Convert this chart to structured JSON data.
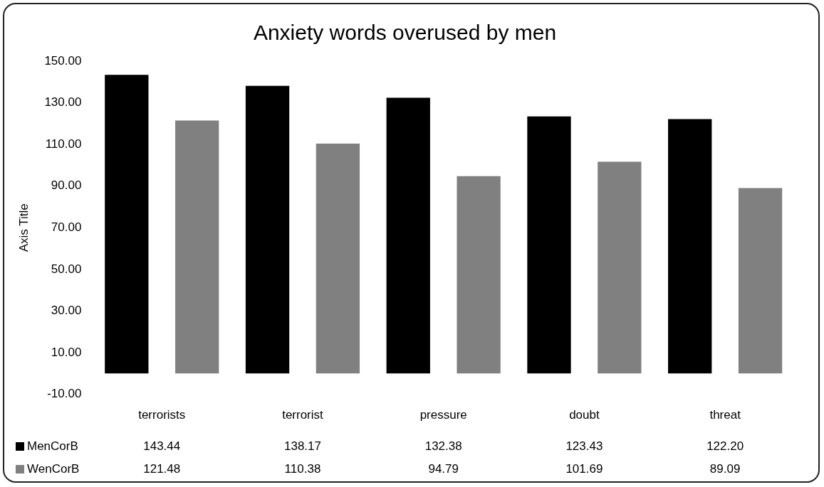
{
  "chart_data": {
    "type": "bar",
    "title": "Anxiety words overused by men",
    "ylabel": "Axis Title",
    "categories": [
      "terrorists",
      "terrorist",
      "pressure",
      "doubt",
      "threat"
    ],
    "series": [
      {
        "name": "MenCorB",
        "color": "#000000",
        "values": [
          143.44,
          138.17,
          132.38,
          123.43,
          122.2
        ],
        "value_labels": [
          "143.44",
          "138.17",
          "132.38",
          "123.43",
          "122.20"
        ]
      },
      {
        "name": "WenCorB",
        "color": "#808080",
        "values": [
          121.48,
          110.38,
          94.79,
          101.69,
          89.09
        ],
        "value_labels": [
          "121.48",
          "110.38",
          "94.79",
          "101.69",
          "89.09"
        ]
      }
    ],
    "ylim": [
      -10,
      150
    ],
    "yticks": [
      {
        "value": -10,
        "label": "-10.00"
      },
      {
        "value": 10,
        "label": "10.00"
      },
      {
        "value": 30,
        "label": "30.00"
      },
      {
        "value": 50,
        "label": "50.00"
      },
      {
        "value": 70,
        "label": "70.00"
      },
      {
        "value": 90,
        "label": "90.00"
      },
      {
        "value": 110,
        "label": "110.00"
      },
      {
        "value": 130,
        "label": "130.00"
      },
      {
        "value": 150,
        "label": "150.00"
      }
    ],
    "grid": false,
    "legend": "bottom"
  }
}
